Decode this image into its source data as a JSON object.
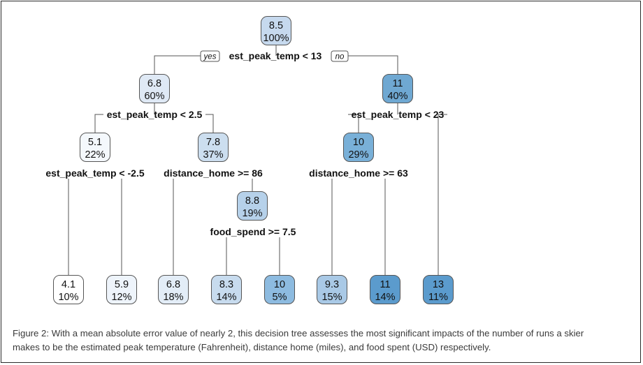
{
  "tree": {
    "nodes": [
      {
        "id": "n1",
        "value": "8.5",
        "percent": "100%",
        "fill": "#c6d9ee"
      },
      {
        "id": "n2",
        "value": "6.8",
        "percent": "60%",
        "fill": "#dfe9f5"
      },
      {
        "id": "n3",
        "value": "11",
        "percent": "40%",
        "fill": "#6fa8d2"
      },
      {
        "id": "n4",
        "value": "5.1",
        "percent": "22%",
        "fill": "#f4f8fc"
      },
      {
        "id": "n5",
        "value": "7.8",
        "percent": "37%",
        "fill": "#ccdeef"
      },
      {
        "id": "n6",
        "value": "10",
        "percent": "29%",
        "fill": "#79b0d8"
      },
      {
        "id": "n7",
        "value": "8.8",
        "percent": "19%",
        "fill": "#b6d1ea"
      },
      {
        "id": "l1",
        "value": "4.1",
        "percent": "10%",
        "fill": "#ffffff"
      },
      {
        "id": "l2",
        "value": "5.9",
        "percent": "12%",
        "fill": "#eef4fb"
      },
      {
        "id": "l3",
        "value": "6.8",
        "percent": "18%",
        "fill": "#e3edf7"
      },
      {
        "id": "l4",
        "value": "8.3",
        "percent": "14%",
        "fill": "#c7dbee"
      },
      {
        "id": "l5",
        "value": "10",
        "percent": "5%",
        "fill": "#8dbbe0"
      },
      {
        "id": "l6",
        "value": "9.3",
        "percent": "15%",
        "fill": "#a9c9e6"
      },
      {
        "id": "l7",
        "value": "11",
        "percent": "14%",
        "fill": "#5b9bcd"
      },
      {
        "id": "l8",
        "value": "13",
        "percent": "11%",
        "fill": "#5b9bcd"
      }
    ],
    "splits": [
      {
        "id": "s1",
        "label": "est_peak_temp < 13"
      },
      {
        "id": "s2",
        "label": "est_peak_temp < 2.5"
      },
      {
        "id": "s3",
        "label": "est_peak_temp < 23"
      },
      {
        "id": "s4",
        "label": "est_peak_temp < -2.5"
      },
      {
        "id": "s5",
        "label": "distance_home >= 86"
      },
      {
        "id": "s6",
        "label": "distance_home >= 63"
      },
      {
        "id": "s7",
        "label": "food_spend >= 7.5"
      }
    ],
    "yes_label": "yes",
    "no_label": "no"
  },
  "caption": {
    "line1": "Figure 2: With a mean absolute error value of nearly 2, this decision tree assesses the most significant impacts of the number of runs a skier",
    "line2": "makes to be the estimated peak temperature (Fahrenheit), distance home (miles), and food spent (USD) respectively."
  }
}
